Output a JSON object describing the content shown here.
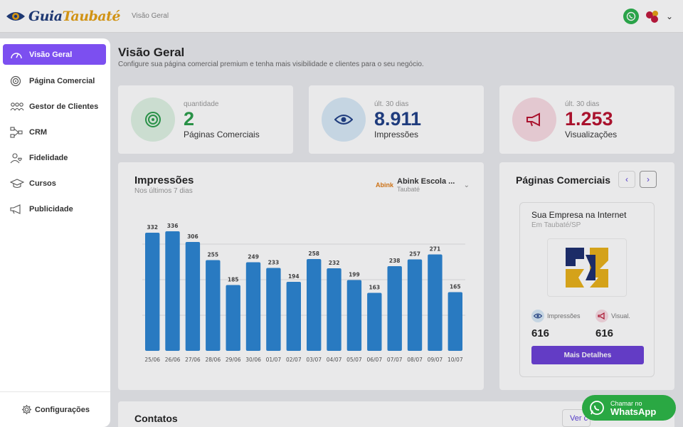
{
  "header": {
    "logo_main": "Guia",
    "logo_accent": "Taubaté",
    "breadcrumb": "Visão Geral"
  },
  "sidebar": {
    "items": [
      {
        "label": "Visão Geral",
        "icon": "gauge-icon",
        "active": true
      },
      {
        "label": "Página Comercial",
        "icon": "target-icon"
      },
      {
        "label": "Gestor de Clientes",
        "icon": "users-icon"
      },
      {
        "label": "CRM",
        "icon": "flow-icon"
      },
      {
        "label": "Fidelidade",
        "icon": "user-heart-icon"
      },
      {
        "label": "Cursos",
        "icon": "graduation-cap-icon"
      },
      {
        "label": "Publicidade",
        "icon": "megaphone-icon"
      }
    ],
    "config_label": "Configurações"
  },
  "page": {
    "title": "Visão Geral",
    "subtitle": "Configure sua página comercial premium e tenha mais visibilidade e clientes para o seu negócio."
  },
  "stats": [
    {
      "caption": "quantidade",
      "value": "2",
      "label": "Páginas Comerciais",
      "color": "#2a9d4a"
    },
    {
      "caption": "últ. 30 dias",
      "value": "8.911",
      "label": "Impressões",
      "color": "#1f3f86"
    },
    {
      "caption": "últ. 30 dias",
      "value": "1.253",
      "label": "Visualizações",
      "color": "#b8102d"
    }
  ],
  "impressions": {
    "title": "Impressões",
    "subtitle": "Nos últimos 7 dias",
    "company_logo_text": "Abink",
    "company_name": "Abink Escola ...",
    "company_city": "Taubaté"
  },
  "chart_data": {
    "type": "bar",
    "categories": [
      "25/06",
      "26/06",
      "27/06",
      "28/06",
      "29/06",
      "30/06",
      "01/07",
      "02/07",
      "03/07",
      "04/07",
      "05/07",
      "06/07",
      "07/07",
      "08/07",
      "09/07",
      "10/07"
    ],
    "values": [
      332,
      336,
      306,
      255,
      185,
      249,
      233,
      194,
      258,
      232,
      199,
      163,
      238,
      257,
      271,
      165
    ],
    "color": "#2a84d2",
    "ylim": [
      0,
      400
    ],
    "grid": true
  },
  "paginas": {
    "title": "Páginas Comerciais",
    "prev_icon": "chevron-left-icon",
    "next_icon": "chevron-right-icon",
    "company_name": "Sua Empresa na Internet",
    "company_loc": "Em Taubaté/SP",
    "impressions_label": "Impressões",
    "impressions_value": "616",
    "views_label": "Visual.",
    "views_value": "616",
    "details_button": "Mais Detalhes"
  },
  "contacts": {
    "title": "Contatos",
    "view_button": "Ver c"
  },
  "whatsapp": {
    "line1": "Chamar no",
    "line2": "WhatsApp"
  },
  "colors": {
    "accent": "#7c4ff0",
    "whatsapp": "#2aa843"
  }
}
